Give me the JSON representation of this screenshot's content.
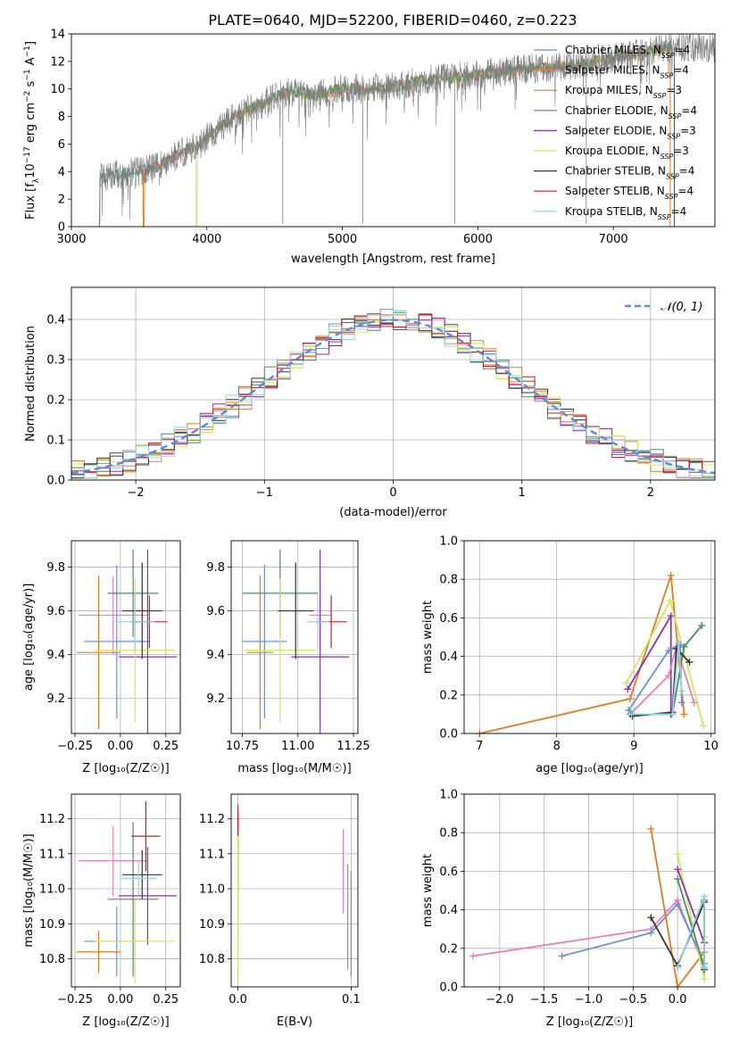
{
  "title": "PLATE=0640, MJD=52200, FIBERID=0460, z=0.223",
  "colors": {
    "chabrier_miles": "#6a8fd8",
    "salpeter_miles": "#e37d5a",
    "kroupa_miles": "#e07b20",
    "chabrier_elodie": "#4e8a63",
    "salpeter_elodie": "#8e2fb0",
    "kroupa_elodie": "#cfe85a",
    "chabrier_stelib": "#333333",
    "salpeter_stelib": "#c0202a",
    "kroupa_stelib": "#8fd3e6",
    "pink": "#e87fb8",
    "data_grey": "#808080",
    "gauss": "#5b8bd6"
  },
  "chart_data": [
    {
      "id": "spectrum",
      "type": "line",
      "xlabel": "wavelength [Angstrom, rest frame]",
      "ylabel": "Flux [f_λ 10^-17 erg cm^-2 s^-1 A^-1]",
      "xlim": [
        3000,
        7750
      ],
      "ylim": [
        0,
        14
      ],
      "xticks": [
        3000,
        4000,
        5000,
        6000,
        7000
      ],
      "yticks": [
        0,
        2,
        4,
        6,
        8,
        10,
        12,
        14
      ],
      "grid": false,
      "legend_position": "top-right",
      "legend": [
        {
          "label": "Chabrier MILES, N",
          "sub": "SSP",
          "suffix": "=4",
          "color": "chabrier_miles"
        },
        {
          "label": "Salpeter MILES, N",
          "sub": "SSP",
          "suffix": "=4",
          "color": "salpeter_miles"
        },
        {
          "label": "Kroupa MILES, N",
          "sub": "SSP",
          "suffix": "=3",
          "color": "kroupa_miles"
        },
        {
          "label": "Chabrier ELODIE, N",
          "sub": "SSP",
          "suffix": "=4",
          "color": "chabrier_elodie"
        },
        {
          "label": "Salpeter ELODIE, N",
          "sub": "SSP",
          "suffix": "=3",
          "color": "salpeter_elodie"
        },
        {
          "label": "Kroupa ELODIE, N",
          "sub": "SSP",
          "suffix": "=3",
          "color": "kroupa_elodie"
        },
        {
          "label": "Chabrier STELIB, N",
          "sub": "SSP",
          "suffix": "=4",
          "color": "chabrier_stelib"
        },
        {
          "label": "Salpeter STELIB, N",
          "sub": "SSP",
          "suffix": "=4",
          "color": "salpeter_stelib"
        },
        {
          "label": "Kroupa STELIB, N",
          "sub": "SSP",
          "suffix": "=4",
          "color": "kroupa_stelib"
        }
      ],
      "continuum": {
        "x": [
          3200,
          3400,
          3600,
          3800,
          3950,
          4050,
          4200,
          4400,
          4600,
          4800,
          5000,
          5200,
          5400,
          5600,
          5800,
          6000,
          6200,
          6400,
          6600,
          6800,
          7000,
          7200,
          7400
        ],
        "y": [
          3.5,
          3.9,
          4.2,
          5.3,
          6.0,
          6.8,
          8.0,
          8.9,
          9.8,
          9.6,
          10.0,
          10.0,
          10.2,
          10.6,
          10.8,
          11.0,
          11.3,
          11.5,
          11.6,
          11.8,
          12.3,
          12.6,
          13.0
        ]
      },
      "model_starts": [
        {
          "color": "salpeter_miles",
          "x0": 3530
        },
        {
          "color": "kroupa_miles",
          "x0": 3530
        },
        {
          "color": "kroupa_elodie",
          "x0": 3920
        }
      ],
      "model_ends": [
        7420,
        7450
      ],
      "absorption_lines": [
        3210,
        4560,
        5150,
        5830,
        6800
      ]
    },
    {
      "id": "residuals",
      "type": "histogram",
      "xlabel": "(data-model)/error",
      "ylabel": "Normed distribution",
      "xlim": [
        -2.5,
        2.5
      ],
      "ylim": [
        0,
        0.48
      ],
      "xticks": [
        -2,
        -1,
        0,
        1,
        2
      ],
      "yticks": [
        0.0,
        0.1,
        0.2,
        0.3,
        0.4
      ],
      "grid": true,
      "bin_width": 0.1,
      "legend_position": "top-right",
      "legend": {
        "label": "𝒩(0, 1)",
        "color": "gauss",
        "style": "dashed"
      },
      "series_colors": [
        "chabrier_miles",
        "salpeter_miles",
        "kroupa_miles",
        "chabrier_elodie",
        "salpeter_elodie",
        "kroupa_elodie",
        "chabrier_stelib",
        "salpeter_stelib",
        "kroupa_stelib"
      ]
    },
    {
      "id": "age_vs_Z",
      "type": "errorbar",
      "xlabel": "Z [log₁₀(Z/Z☉)]",
      "ylabel": "age  [log₁₀(age/yr)]",
      "xlim": [
        -0.27,
        0.33
      ],
      "ylim": [
        9.04,
        9.92
      ],
      "xticks": [
        -0.25,
        0.0,
        0.25
      ],
      "yticks": [
        9.2,
        9.4,
        9.6,
        9.8
      ],
      "grid": true,
      "points": [
        {
          "x": -0.02,
          "xerr": 0.18,
          "y": 9.46,
          "yerr": 0.35,
          "color": "chabrier_miles"
        },
        {
          "x": -0.04,
          "xerr": 0.19,
          "y": 9.58,
          "yerr": 0.18,
          "color": "pink"
        },
        {
          "x": -0.12,
          "xerr": 0.12,
          "y": 9.41,
          "yerr": 0.35,
          "color": "kroupa_miles"
        },
        {
          "x": 0.07,
          "xerr": 0.14,
          "y": 9.68,
          "yerr": 0.2,
          "color": "chabrier_elodie"
        },
        {
          "x": 0.15,
          "xerr": 0.16,
          "y": 9.39,
          "yerr": 0.49,
          "color": "salpeter_elodie"
        },
        {
          "x": 0.08,
          "xerr": 0.22,
          "y": 9.42,
          "yerr": 0.33,
          "color": "kroupa_elodie"
        },
        {
          "x": 0.12,
          "xerr": 0.11,
          "y": 9.6,
          "yerr": 0.22,
          "color": "chabrier_stelib"
        },
        {
          "x": 0.16,
          "xerr": 0.1,
          "y": 9.55,
          "yerr": 0.12,
          "color": "salpeter_stelib"
        },
        {
          "x": 0.08,
          "xerr": 0.11,
          "y": 9.55,
          "yerr": 0.13,
          "color": "kroupa_stelib"
        }
      ]
    },
    {
      "id": "age_vs_mass",
      "type": "errorbar",
      "xlabel": "mass [log₁₀(M/M☉)]",
      "ylabel": "",
      "xlim": [
        10.7,
        11.27
      ],
      "ylim": [
        9.04,
        9.92
      ],
      "xticks": [
        10.75,
        11.0,
        11.25
      ],
      "yticks": [
        9.2,
        9.4,
        9.6,
        9.8
      ],
      "grid": true,
      "points": [
        {
          "x": 10.85,
          "xerr": 0.1,
          "y": 9.46,
          "yerr": 0.35,
          "color": "chabrier_miles"
        },
        {
          "x": 11.1,
          "xerr": 0.05,
          "y": 9.58,
          "yerr": 0.18,
          "color": "pink"
        },
        {
          "x": 10.83,
          "xerr": 0.06,
          "y": 9.41,
          "yerr": 0.35,
          "color": "kroupa_miles"
        },
        {
          "x": 10.92,
          "xerr": 0.17,
          "y": 9.68,
          "yerr": 0.2,
          "color": "chabrier_elodie"
        },
        {
          "x": 11.1,
          "xerr": 0.13,
          "y": 9.39,
          "yerr": 0.49,
          "color": "salpeter_elodie"
        },
        {
          "x": 10.92,
          "xerr": 0.16,
          "y": 9.42,
          "yerr": 0.33,
          "color": "kroupa_elodie"
        },
        {
          "x": 10.99,
          "xerr": 0.08,
          "y": 9.6,
          "yerr": 0.22,
          "color": "chabrier_stelib"
        },
        {
          "x": 11.15,
          "xerr": 0.07,
          "y": 9.55,
          "yerr": 0.12,
          "color": "salpeter_stelib"
        },
        {
          "x": 11.09,
          "xerr": 0.05,
          "y": 9.55,
          "yerr": 0.13,
          "color": "kroupa_stelib"
        }
      ]
    },
    {
      "id": "weight_vs_age",
      "type": "line",
      "xlabel": "age  [log₁₀(age/yr)]",
      "ylabel": "mass weight",
      "xlim": [
        6.8,
        10.05
      ],
      "ylim": [
        0,
        1
      ],
      "xticks": [
        7,
        8,
        9,
        10
      ],
      "yticks": [
        0.0,
        0.2,
        0.4,
        0.6,
        0.8,
        1.0
      ],
      "grid": true,
      "series": [
        {
          "color": "kroupa_miles",
          "x": [
            7.0,
            8.95,
            9.48,
            9.65
          ],
          "y": [
            0.0,
            0.18,
            0.82,
            0.1
          ]
        },
        {
          "color": "kroupa_elodie",
          "x": [
            8.9,
            9.47,
            9.9
          ],
          "y": [
            0.26,
            0.69,
            0.04
          ]
        },
        {
          "color": "salpeter_elodie",
          "x": [
            8.92,
            9.48,
            9.48
          ],
          "y": [
            0.23,
            0.61,
            0.1
          ]
        },
        {
          "color": "chabrier_miles",
          "x": [
            8.93,
            9.45,
            9.6,
            9.62
          ],
          "y": [
            0.12,
            0.43,
            0.46,
            0.16
          ]
        },
        {
          "color": "pink",
          "x": [
            8.95,
            9.45,
            9.55,
            9.78
          ],
          "y": [
            0.1,
            0.3,
            0.45,
            0.16
          ]
        },
        {
          "color": "chabrier_elodie",
          "x": [
            8.96,
            9.5,
            9.65,
            9.88
          ],
          "y": [
            0.1,
            0.1,
            0.45,
            0.56
          ]
        },
        {
          "color": "chabrier_stelib",
          "x": [
            8.98,
            9.5,
            9.55,
            9.72
          ],
          "y": [
            0.09,
            0.11,
            0.44,
            0.37
          ]
        },
        {
          "color": "kroupa_stelib",
          "x": [
            8.97,
            9.5,
            9.58,
            9.62
          ],
          "y": [
            0.1,
            0.1,
            0.47,
            0.22
          ]
        }
      ]
    },
    {
      "id": "mass_vs_Z",
      "type": "errorbar",
      "xlabel": "Z [log₁₀(Z/Z☉)]",
      "ylabel": "mass [log₁₀(M/M☉)]",
      "xlim": [
        -0.27,
        0.33
      ],
      "ylim": [
        10.72,
        11.27
      ],
      "xticks": [
        -0.25,
        0.0,
        0.25
      ],
      "yticks": [
        10.8,
        10.9,
        11.0,
        11.1,
        11.2
      ],
      "grid": true,
      "points": [
        {
          "x": -0.02,
          "xerr": 0.18,
          "y": 10.85,
          "yerr": 0.1,
          "color": "chabrier_miles"
        },
        {
          "x": -0.04,
          "xerr": 0.19,
          "y": 11.08,
          "yerr": 0.1,
          "color": "pink"
        },
        {
          "x": -0.12,
          "xerr": 0.12,
          "y": 10.82,
          "yerr": 0.06,
          "color": "kroupa_miles"
        },
        {
          "x": 0.07,
          "xerr": 0.14,
          "y": 10.97,
          "yerr": 0.22,
          "color": "chabrier_elodie"
        },
        {
          "x": 0.15,
          "xerr": 0.16,
          "y": 10.98,
          "yerr": 0.14,
          "color": "salpeter_elodie"
        },
        {
          "x": 0.08,
          "xerr": 0.22,
          "y": 10.85,
          "yerr": 0.12,
          "color": "kroupa_elodie"
        },
        {
          "x": 0.12,
          "xerr": 0.11,
          "y": 11.04,
          "yerr": 0.07,
          "color": "chabrier_stelib"
        },
        {
          "x": 0.14,
          "xerr": 0.08,
          "y": 11.15,
          "yerr": 0.1,
          "color": "salpeter_stelib"
        },
        {
          "x": 0.1,
          "xerr": 0.1,
          "y": 11.03,
          "yerr": 0.05,
          "color": "kroupa_stelib"
        }
      ]
    },
    {
      "id": "mass_vs_ebv",
      "type": "errorbar",
      "xlabel": "E(B-V)",
      "ylabel": "",
      "xlim": [
        -0.006,
        0.106
      ],
      "ylim": [
        10.72,
        11.27
      ],
      "xticks": [
        0.0,
        0.1
      ],
      "yticks": [
        10.8,
        10.9,
        11.0,
        11.1,
        11.2
      ],
      "grid": true,
      "points": [
        {
          "x": 0.0,
          "xerr": 0,
          "y": 11.12,
          "yerr": 0.12,
          "color": "salpeter_elodie"
        },
        {
          "x": 0.0,
          "xerr": 0,
          "y": 11.1,
          "yerr": 0.12,
          "color": "salpeter_stelib"
        },
        {
          "x": 0.0,
          "xerr": 0,
          "y": 10.98,
          "yerr": 0.12,
          "color": "kroupa_stelib"
        },
        {
          "x": 0.0,
          "xerr": 0,
          "y": 10.95,
          "yerr": 0.2,
          "color": "kroupa_elodie"
        },
        {
          "x": 0.093,
          "xerr": 0,
          "y": 11.05,
          "yerr": 0.12,
          "color": "pink"
        },
        {
          "x": 0.097,
          "xerr": 0,
          "y": 10.92,
          "yerr": 0.15,
          "color": "kroupa_miles"
        },
        {
          "x": 0.1,
          "xerr": 0,
          "y": 10.9,
          "yerr": 0.15,
          "color": "chabrier_miles"
        }
      ]
    },
    {
      "id": "weight_vs_Z",
      "type": "line",
      "xlabel": "Z [log₁₀(Z/Z☉)]",
      "ylabel": "mass weight",
      "xlim": [
        -2.4,
        0.42
      ],
      "ylim": [
        0,
        1
      ],
      "xticks": [
        -2.0,
        -1.5,
        -1.0,
        -0.5,
        0.0
      ],
      "yticks": [
        0.0,
        0.2,
        0.4,
        0.6,
        0.8,
        1.0
      ],
      "grid": true,
      "series": [
        {
          "color": "pink",
          "x": [
            -2.3,
            -0.3,
            0.0,
            0.3
          ],
          "y": [
            0.16,
            0.3,
            0.45,
            0.1
          ]
        },
        {
          "color": "chabrier_miles",
          "x": [
            -1.3,
            -0.3,
            0.0,
            0.3
          ],
          "y": [
            0.16,
            0.28,
            0.43,
            0.12
          ]
        },
        {
          "color": "kroupa_miles",
          "x": [
            -0.3,
            0.0,
            0.3
          ],
          "y": [
            0.82,
            0.0,
            0.18
          ]
        },
        {
          "color": "kroupa_elodie",
          "x": [
            0.0,
            0.3,
            0.3
          ],
          "y": [
            0.69,
            0.04,
            0.26
          ]
        },
        {
          "color": "salpeter_elodie",
          "x": [
            0.0,
            0.3,
            0.3
          ],
          "y": [
            0.61,
            0.23,
            0.1
          ]
        },
        {
          "color": "chabrier_elodie",
          "x": [
            0.0,
            0.3,
            0.3
          ],
          "y": [
            0.56,
            0.1,
            0.45
          ]
        },
        {
          "color": "chabrier_stelib",
          "x": [
            -0.3,
            0.0,
            0.3,
            0.3
          ],
          "y": [
            0.36,
            0.11,
            0.44,
            0.09
          ]
        },
        {
          "color": "kroupa_stelib",
          "x": [
            0.0,
            0.3,
            0.3
          ],
          "y": [
            0.1,
            0.47,
            0.1
          ]
        }
      ]
    }
  ]
}
